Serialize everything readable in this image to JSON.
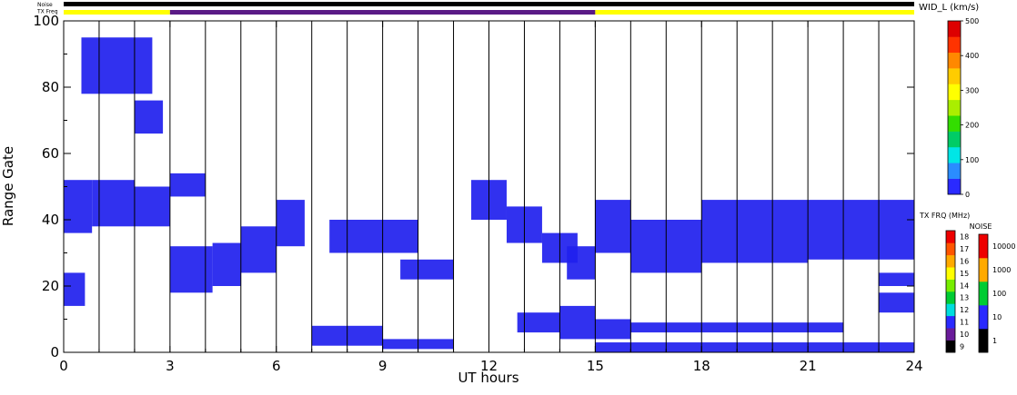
{
  "header": {
    "noise_label": "Noise",
    "txfreq_label": "TX Freq"
  },
  "chart_data": {
    "type": "heatmap",
    "title": "",
    "xlabel": "UT hours",
    "ylabel": "Range Gate",
    "xlim": [
      0,
      24
    ],
    "ylim": [
      0,
      100
    ],
    "x_ticks": [
      "0",
      "3",
      "6",
      "9",
      "12",
      "15",
      "18",
      "21",
      "24"
    ],
    "y_ticks": [
      "0",
      "20",
      "40",
      "60",
      "80",
      "100"
    ],
    "vertical_markers_hours": [
      1,
      2,
      3,
      4,
      5,
      6,
      7,
      8,
      9,
      10,
      11,
      12,
      13,
      14,
      15,
      16,
      17,
      18,
      19,
      20,
      21,
      22,
      23
    ],
    "noise_bar": {
      "color": "#000000",
      "start": 0,
      "end": 24
    },
    "txfreq_bar": [
      {
        "start": 0,
        "end": 3,
        "color": "#ffff00"
      },
      {
        "start": 3,
        "end": 15,
        "color": "#5a1a86"
      },
      {
        "start": 15,
        "end": 24,
        "color": "#ffff00"
      }
    ],
    "dominant_color": "#2020ee",
    "echo_bands": [
      {
        "x": [
          0,
          0.8
        ],
        "y": [
          36,
          52
        ]
      },
      {
        "x": [
          0.8,
          2
        ],
        "y": [
          38,
          52
        ]
      },
      {
        "x": [
          2,
          3
        ],
        "y": [
          38,
          50
        ]
      },
      {
        "x": [
          0,
          0.6
        ],
        "y": [
          14,
          24
        ]
      },
      {
        "x": [
          3,
          4.2
        ],
        "y": [
          18,
          32
        ]
      },
      {
        "x": [
          4.2,
          5
        ],
        "y": [
          20,
          33
        ]
      },
      {
        "x": [
          5,
          6
        ],
        "y": [
          24,
          38
        ]
      },
      {
        "x": [
          6,
          6.8
        ],
        "y": [
          32,
          46
        ]
      },
      {
        "x": [
          3,
          4
        ],
        "y": [
          47,
          54
        ]
      },
      {
        "x": [
          7,
          9
        ],
        "y": [
          2,
          8
        ]
      },
      {
        "x": [
          9,
          11
        ],
        "y": [
          1,
          4
        ]
      },
      {
        "x": [
          7.5,
          10
        ],
        "y": [
          30,
          40
        ]
      },
      {
        "x": [
          9.5,
          11
        ],
        "y": [
          22,
          28
        ]
      },
      {
        "x": [
          11.5,
          12.5
        ],
        "y": [
          40,
          52
        ]
      },
      {
        "x": [
          12.5,
          13.5
        ],
        "y": [
          33,
          44
        ]
      },
      {
        "x": [
          13.5,
          14.5
        ],
        "y": [
          27,
          36
        ]
      },
      {
        "x": [
          14.2,
          15
        ],
        "y": [
          22,
          32
        ]
      },
      {
        "x": [
          12.8,
          14
        ],
        "y": [
          6,
          12
        ]
      },
      {
        "x": [
          14,
          15
        ],
        "y": [
          4,
          14
        ]
      },
      {
        "x": [
          15,
          16
        ],
        "y": [
          30,
          46
        ]
      },
      {
        "x": [
          16,
          18
        ],
        "y": [
          24,
          40
        ]
      },
      {
        "x": [
          18,
          21
        ],
        "y": [
          27,
          46
        ]
      },
      {
        "x": [
          21,
          24
        ],
        "y": [
          28,
          46
        ]
      },
      {
        "x": [
          15,
          24
        ],
        "y": [
          0,
          3
        ]
      },
      {
        "x": [
          15,
          16
        ],
        "y": [
          4,
          10
        ]
      },
      {
        "x": [
          16,
          22
        ],
        "y": [
          6,
          9
        ]
      },
      {
        "x": [
          23,
          24
        ],
        "y": [
          12,
          18
        ]
      },
      {
        "x": [
          23,
          24
        ],
        "y": [
          20,
          24
        ]
      },
      {
        "x": [
          0.5,
          2.5
        ],
        "y": [
          78,
          95
        ]
      },
      {
        "x": [
          2,
          2.8
        ],
        "y": [
          66,
          76
        ]
      }
    ]
  },
  "colorbar_wid": {
    "title": "WID_L (km/s)",
    "ticks": [
      "0",
      "100",
      "200",
      "300",
      "400",
      "500"
    ],
    "colors": [
      "#2a2aff",
      "#2a8cff",
      "#00e6e6",
      "#00cc66",
      "#33dd00",
      "#aaee00",
      "#ffff00",
      "#ffcc00",
      "#ff8800",
      "#ff3300",
      "#dd0000"
    ]
  },
  "colorbar_txfreq": {
    "title": "TX FRQ (MHz)",
    "ticks": [
      "9",
      "10",
      "11",
      "12",
      "13",
      "14",
      "15",
      "16",
      "17",
      "18"
    ],
    "colors": [
      "#000000",
      "#6a1b9a",
      "#2a2aff",
      "#00dddd",
      "#00cc33",
      "#77ee00",
      "#ffff00",
      "#ffaa00",
      "#ff5500",
      "#ee0000"
    ]
  },
  "colorbar_noise": {
    "title": "NOISE",
    "ticks": [
      "1",
      "10",
      "100",
      "1000",
      "10000"
    ],
    "colors": [
      "#000000",
      "#2a2aff",
      "#00cc33",
      "#ffaa00",
      "#ee0000"
    ]
  }
}
